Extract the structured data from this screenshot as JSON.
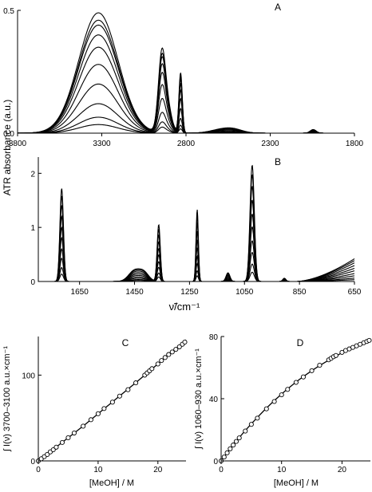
{
  "figure": {
    "shared_ylabel": "ATR absorbance (a.u.)",
    "panel_b_xlabel": "ν̃/cm⁻¹"
  },
  "chart_data": [
    {
      "id": "A",
      "type": "line",
      "panel_label": "A",
      "xlabel": "",
      "ylabel": "ATR absorbance (a.u.)",
      "xlim": [
        3800,
        1800
      ],
      "ylim": [
        0,
        0.5
      ],
      "xticks": [
        "3800",
        "3300",
        "2800",
        "2300",
        "1800"
      ],
      "yticks": [
        "0.0",
        "0.5"
      ],
      "n_series": 10,
      "scales": [
        0.035,
        0.065,
        0.12,
        0.2,
        0.28,
        0.35,
        0.4,
        0.44,
        0.46,
        0.49
      ],
      "peaks": [
        {
          "center": 3320,
          "width": 165,
          "height": 1.0
        },
        {
          "center": 2945,
          "width": 28,
          "height": 0.5
        },
        {
          "center": 2920,
          "width": 40,
          "height": 0.28
        },
        {
          "center": 2832,
          "width": 14,
          "height": 0.5
        },
        {
          "center": 2600,
          "width": 90,
          "height": 0.025
        },
        {
          "center": 2520,
          "width": 80,
          "height": 0.03
        },
        {
          "center": 2045,
          "width": 25,
          "height": 0.03
        }
      ]
    },
    {
      "id": "B",
      "type": "line",
      "panel_label": "B",
      "xlabel": "ν̃/cm⁻¹",
      "ylabel": "",
      "xlim": [
        1800,
        650
      ],
      "ylim": [
        0,
        2.3
      ],
      "xticks": [
        "1650",
        "1450",
        "1250",
        "1050",
        "850",
        "650"
      ],
      "yticks": [
        "0",
        "1",
        "2"
      ],
      "n_series": 10,
      "scales": [
        0.08,
        0.15,
        0.25,
        0.35,
        0.47,
        0.58,
        0.7,
        0.82,
        0.92,
        1.0
      ],
      "peaks": [
        {
          "center": 1715,
          "width": 9,
          "height": 1.72
        },
        {
          "center": 1450,
          "width": 30,
          "height": 0.2
        },
        {
          "center": 1415,
          "width": 25,
          "height": 0.15
        },
        {
          "center": 1362,
          "width": 8,
          "height": 1.05
        },
        {
          "center": 1222,
          "width": 6,
          "height": 1.33
        },
        {
          "center": 1110,
          "width": 10,
          "height": 0.16
        },
        {
          "center": 1022,
          "width": 11,
          "height": 2.15
        },
        {
          "center": 905,
          "width": 8,
          "height": 0.06
        }
      ],
      "tail": {
        "start": 860,
        "height_at_650": 0.42
      }
    },
    {
      "id": "C",
      "type": "scatter",
      "panel_label": "C",
      "xlabel": "[MeOH] / M",
      "ylabel": "∫ I(ν) 3700–3100 a.u.×cm⁻¹",
      "xlim": [
        0,
        24.7
      ],
      "ylim": [
        0,
        145
      ],
      "xticks": [
        "0",
        "10",
        "20"
      ],
      "yticks": [
        "0",
        "100"
      ],
      "x": [
        0.0,
        0.5,
        1.0,
        1.5,
        2.0,
        2.5,
        3.0,
        4.0,
        5.0,
        6.0,
        7.5,
        8.8,
        10.0,
        11.0,
        12.4,
        13.6,
        15.0,
        16.3,
        17.8,
        18.2,
        18.6,
        19.0,
        20.0,
        20.6,
        21.2,
        21.8,
        22.4,
        23.0,
        23.6,
        24.1,
        24.5
      ],
      "y": [
        0.0,
        2.5,
        5.0,
        7.5,
        10.5,
        13.0,
        16.0,
        21.5,
        27.0,
        32.5,
        40.5,
        48.0,
        55.0,
        61.0,
        68.5,
        75.5,
        83.0,
        91.0,
        100.0,
        102.5,
        105.0,
        107.5,
        113.0,
        117.0,
        120.5,
        124.0,
        127.0,
        130.0,
        133.0,
        136.0,
        138.5
      ],
      "fit": [
        {
          "x": 0,
          "y": 0
        },
        {
          "x": 4,
          "y": 21.6
        },
        {
          "x": 8,
          "y": 43.5
        },
        {
          "x": 12,
          "y": 66.5
        },
        {
          "x": 16,
          "y": 89.5
        },
        {
          "x": 20,
          "y": 113
        },
        {
          "x": 24.7,
          "y": 141
        }
      ]
    },
    {
      "id": "D",
      "type": "scatter",
      "panel_label": "D",
      "xlabel": "[MeOH] / M",
      "ylabel": "∫ I(ν) 1060–930 a.u.×cm⁻¹",
      "xlim": [
        0,
        24.7
      ],
      "ylim": [
        0,
        80
      ],
      "xticks": [
        "0",
        "10",
        "20"
      ],
      "yticks": [
        "0",
        "40",
        "80"
      ],
      "x": [
        0.0,
        0.5,
        1.0,
        1.5,
        2.0,
        2.5,
        3.0,
        4.0,
        5.0,
        6.0,
        7.5,
        8.8,
        10.0,
        11.0,
        12.4,
        13.6,
        15.0,
        16.3,
        17.8,
        18.2,
        18.6,
        19.0,
        20.0,
        20.6,
        21.2,
        21.8,
        22.4,
        23.0,
        23.6,
        24.1,
        24.5
      ],
      "y": [
        0.0,
        2.5,
        5.2,
        7.8,
        10.2,
        12.5,
        14.8,
        19.2,
        23.5,
        27.5,
        33.5,
        38.2,
        42.5,
        46.0,
        50.5,
        54.0,
        58.0,
        61.5,
        65.0,
        66.0,
        67.0,
        67.8,
        69.8,
        71.0,
        72.0,
        73.0,
        74.0,
        75.0,
        76.0,
        76.8,
        77.5
      ],
      "fit": [
        {
          "x": 0,
          "y": 0
        },
        {
          "x": 3,
          "y": 15
        },
        {
          "x": 6,
          "y": 28
        },
        {
          "x": 9,
          "y": 39.5
        },
        {
          "x": 12,
          "y": 49.5
        },
        {
          "x": 15,
          "y": 58
        },
        {
          "x": 18,
          "y": 65.2
        },
        {
          "x": 21,
          "y": 71.5
        },
        {
          "x": 24.7,
          "y": 78
        }
      ]
    }
  ]
}
